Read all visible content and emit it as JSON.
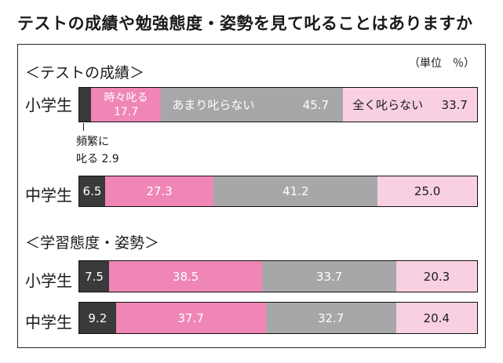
{
  "title": "テストの成績や勉強態度・姿勢を見て叱ることはありますか",
  "unit": "（単位　％）",
  "sections": [
    {
      "label": "＜テストの成績＞",
      "rows": [
        {
          "label": "小学生",
          "values": [
            2.9,
            17.7,
            45.7,
            33.7
          ]
        },
        {
          "label": "中学生",
          "values": [
            6.5,
            27.3,
            41.2,
            25.0
          ]
        }
      ]
    },
    {
      "label": "＜学習態度・姿勢＞",
      "rows": [
        {
          "label": "小学生",
          "values": [
            7.5,
            38.5,
            33.7,
            20.3
          ]
        },
        {
          "label": "中学生",
          "values": [
            9.2,
            37.7,
            32.7,
            20.4
          ]
        }
      ]
    }
  ],
  "legend_labels": {
    "frequent_line1": "頻繁に",
    "frequent_line2": "叱る 2.9",
    "sometimes": "時々叱る",
    "rarely": "あまり叱らない",
    "never": "全く叱らない"
  },
  "value_labels": {
    "s1r1": [
      "2.9",
      "17.7",
      "45.7",
      "33.7"
    ],
    "s1r2": [
      "6.5",
      "27.3",
      "41.2",
      "25.0"
    ],
    "s2r1": [
      "7.5",
      "38.5",
      "33.7",
      "20.3"
    ],
    "s2r2": [
      "9.2",
      "37.7",
      "32.7",
      "20.4"
    ]
  },
  "colors": {
    "frequent": "#3a3a3a",
    "sometimes": "#ef86b6",
    "rarely": "#a7a7a9",
    "never": "#f9d0e2"
  },
  "chart_data": {
    "type": "bar",
    "orientation": "horizontal",
    "stacked": true,
    "title": "テストの成績や勉強態度・姿勢を見て叱ることはありますか",
    "unit": "%",
    "categories": [
      "テストの成績 小学生",
      "テストの成績 中学生",
      "学習態度・姿勢 小学生",
      "学習態度・姿勢 中学生"
    ],
    "series": [
      {
        "name": "頻繁に叱る",
        "values": [
          2.9,
          6.5,
          7.5,
          9.2
        ]
      },
      {
        "name": "時々叱る",
        "values": [
          17.7,
          27.3,
          38.5,
          37.7
        ]
      },
      {
        "name": "あまり叱らない",
        "values": [
          45.7,
          41.2,
          33.7,
          32.7
        ]
      },
      {
        "name": "全く叱らない",
        "values": [
          33.7,
          25.0,
          20.3,
          20.4
        ]
      }
    ],
    "xlim": [
      0,
      100
    ],
    "grid": false
  }
}
